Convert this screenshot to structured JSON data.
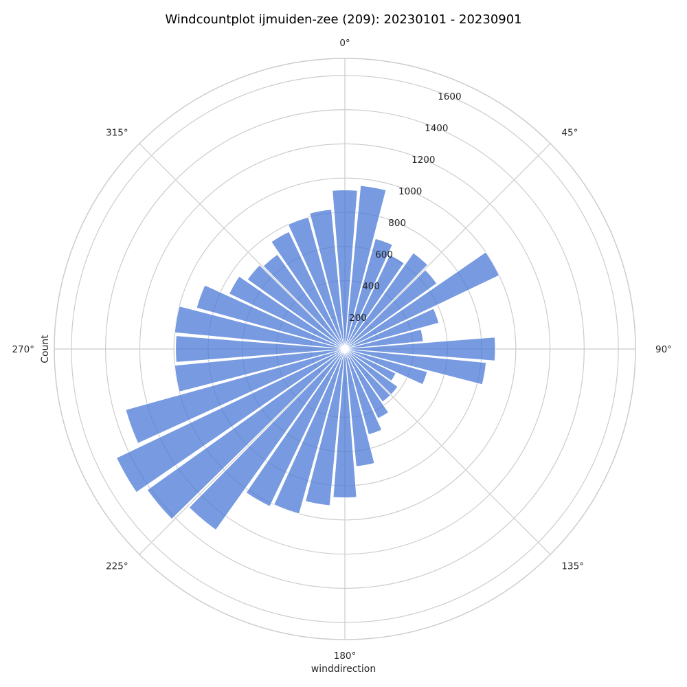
{
  "chart_data": {
    "type": "bar",
    "projection": "polar",
    "title": "Windcountplot ijmuiden-zee (209): 20230101 - 20230901",
    "xlabel": "winddirection",
    "ylabel": "Count",
    "theta_zero_location": "N",
    "theta_direction": "clockwise",
    "angle_ticks": [
      "0°",
      "45°",
      "90°",
      "135°",
      "180°",
      "225°",
      "270°",
      "315°"
    ],
    "r_ticks": [
      200,
      400,
      600,
      800,
      1000,
      1200,
      1400,
      1600
    ],
    "r_tick_labels": [
      "200",
      "400",
      "600",
      "800",
      "1000",
      "1200",
      "1400",
      "1600"
    ],
    "rlim": [
      0,
      1700
    ],
    "grid": true,
    "bar_color": "#4a78d6",
    "bar_width_deg": 9,
    "categories": [
      0,
      10,
      20,
      30,
      40,
      50,
      60,
      70,
      80,
      90,
      100,
      110,
      120,
      130,
      140,
      150,
      160,
      170,
      180,
      190,
      200,
      210,
      220,
      230,
      240,
      250,
      260,
      270,
      280,
      290,
      300,
      310,
      320,
      330,
      340,
      350
    ],
    "values": [
      930,
      960,
      670,
      610,
      690,
      660,
      1000,
      570,
      460,
      880,
      830,
      500,
      330,
      380,
      380,
      450,
      520,
      690,
      870,
      920,
      1000,
      1020,
      1300,
      1420,
      1480,
      1330,
      1000,
      990,
      1000,
      900,
      750,
      700,
      680,
      760,
      800,
      820
    ]
  }
}
